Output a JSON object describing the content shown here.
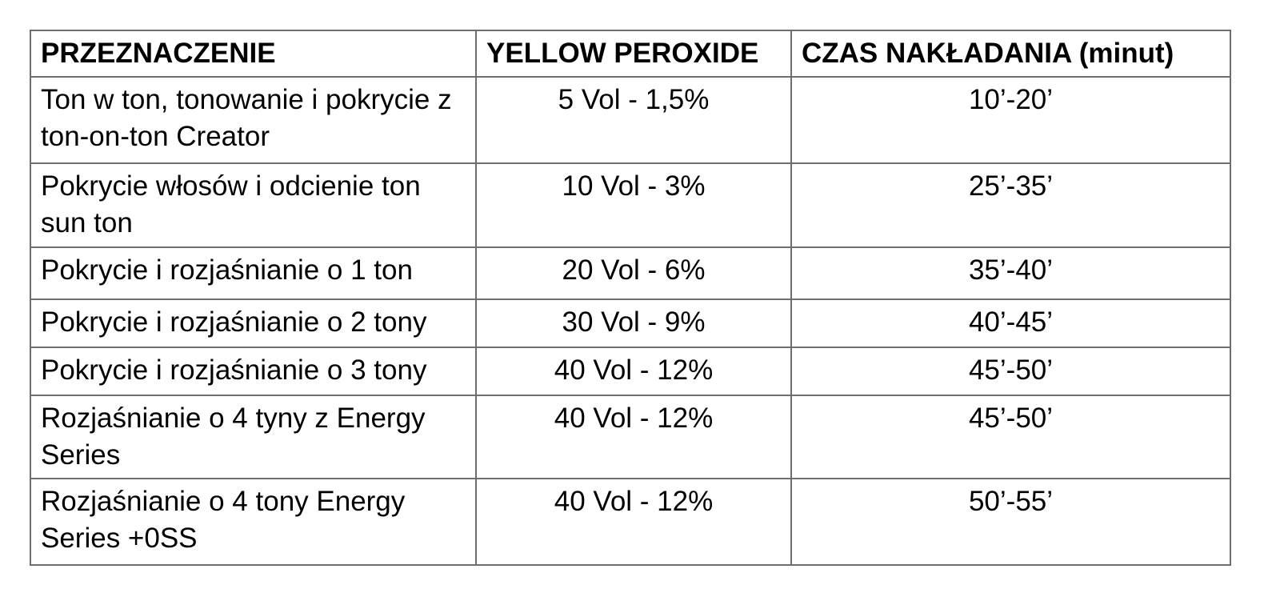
{
  "colors": {
    "background": "#ffffff",
    "text": "#000000",
    "border_gray": "#6e6e6e"
  },
  "chart_data": {
    "type": "table",
    "columns": [
      "PRZEZNACZENIE",
      "YELLOW PEROXIDE",
      "CZAS NAKŁADANIA (minut)"
    ],
    "rows": [
      [
        "Ton w ton, tonowanie i pokrycie z ton-on-ton Creator",
        "5 Vol - 1,5%",
        "10’-20’"
      ],
      [
        "Pokrycie włosów i odcienie ton sun ton",
        "10 Vol - 3%",
        "25’-35’"
      ],
      [
        "Pokrycie i rozjaśnianie o 1 ton",
        "20 Vol - 6%",
        "35’-40’"
      ],
      [
        "Pokrycie i rozjaśnianie o 2 tony",
        "30 Vol - 9%",
        "40’-45’"
      ],
      [
        "Pokrycie i rozjaśnianie o 3 tony",
        "40 Vol - 12%",
        "45’-50’"
      ],
      [
        "Rozjaśnianie o 4 tyny z Energy Series",
        "40 Vol - 12%",
        "45’-50’"
      ],
      [
        "Rozjaśnianie o 4 tony Energy Series +0SS",
        "40 Vol - 12%",
        "50’-55’"
      ]
    ]
  }
}
